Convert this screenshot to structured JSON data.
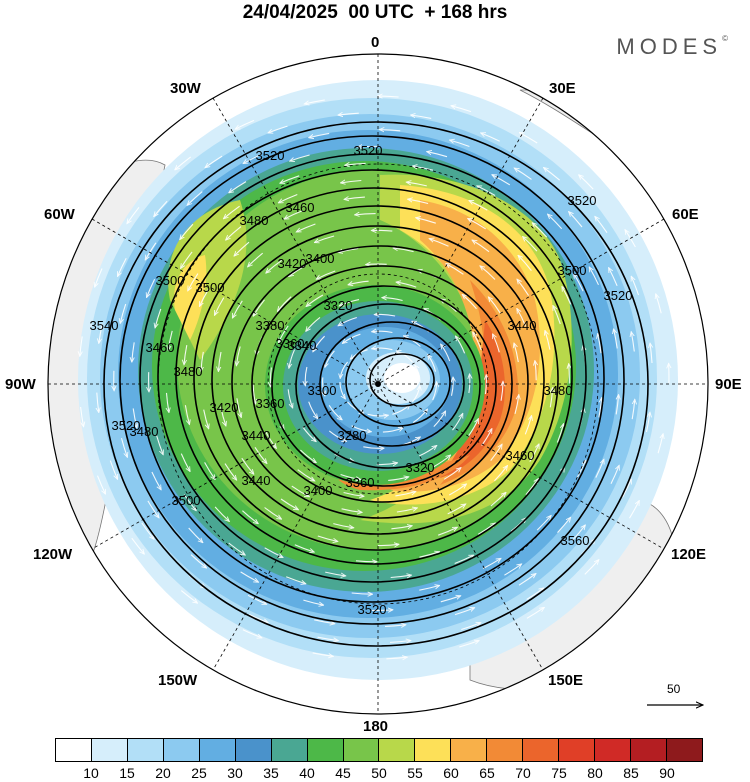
{
  "title": "24/04/2025  00 UTC  + 168 hrs",
  "logo": "MODES",
  "logo_mark": "©",
  "longitude_labels": {
    "lon_0": "0",
    "lon_30e": "30E",
    "lon_60e": "60E",
    "lon_90e": "90E",
    "lon_120e": "120E",
    "lon_150e": "150E",
    "lon_180": "180",
    "lon_150w": "150W",
    "lon_120w": "120W",
    "lon_90w": "90W",
    "lon_60w": "60W",
    "lon_30w": "30W"
  },
  "contour_labels": [
    "3520",
    "3520",
    "3520",
    "3540",
    "3480",
    "3460",
    "3500",
    "3420",
    "3400",
    "3380",
    "3360",
    "3320",
    "3440",
    "3500",
    "3520",
    "3480",
    "3460",
    "3340",
    "3300",
    "3280",
    "3320",
    "3360",
    "3400",
    "3440",
    "3480",
    "3500",
    "3520",
    "3560",
    "3460",
    "3520",
    "3480",
    "3500",
    "3440",
    "3420",
    "3360"
  ],
  "reference_vector": "50",
  "colorbar": {
    "colors": [
      "#ffffff",
      "#d6eefb",
      "#b2dff7",
      "#8ccaf0",
      "#62aee2",
      "#4a92cb",
      "#4aa793",
      "#4db848",
      "#78c54a",
      "#b8d84a",
      "#fde058",
      "#f8b049",
      "#f28a36",
      "#eb652c",
      "#e03f27",
      "#d02a26",
      "#b41e22",
      "#8e1a1c"
    ],
    "ticks": [
      "10",
      "15",
      "20",
      "25",
      "30",
      "35",
      "40",
      "45",
      "50",
      "55",
      "60",
      "65",
      "70",
      "75",
      "80",
      "85",
      "90"
    ]
  }
}
